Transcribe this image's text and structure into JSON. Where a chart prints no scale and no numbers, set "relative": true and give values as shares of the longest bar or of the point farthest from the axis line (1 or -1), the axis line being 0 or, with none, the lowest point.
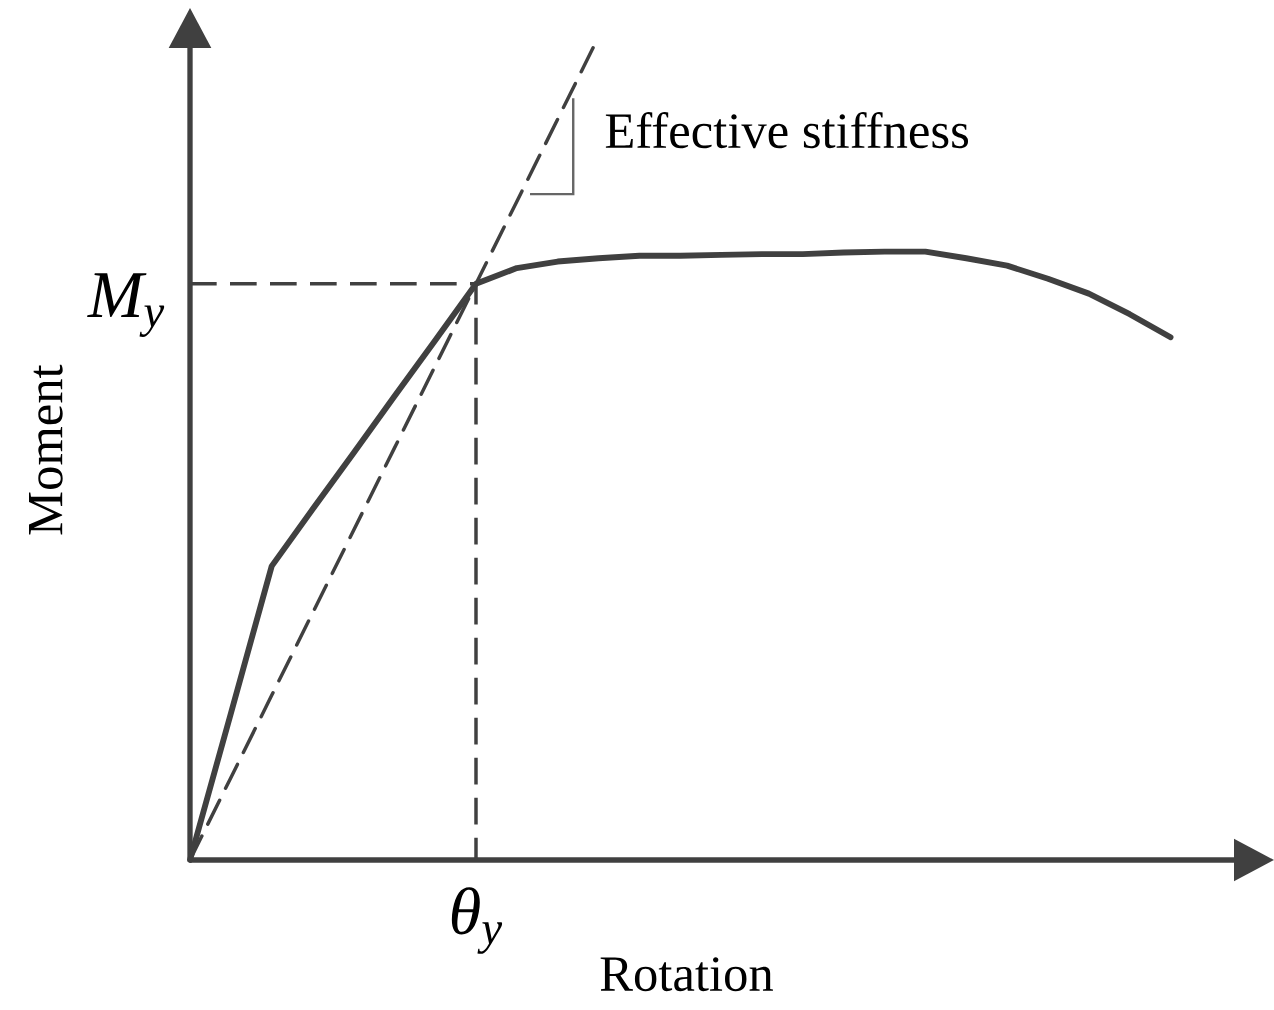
{
  "chart_data": {
    "type": "line",
    "relative": true,
    "xlabel": "Rotation",
    "ylabel": "Moment",
    "marker": "none",
    "categories": [
      null,
      null,
      null,
      null,
      null,
      null,
      null,
      null,
      null,
      null,
      null,
      null,
      null,
      null,
      null,
      null,
      null,
      null,
      null,
      null,
      null,
      null,
      null,
      null,
      null
    ],
    "series": [
      {
        "color": "#404040",
        "line_style": "solid",
        "values": [
          0,
          0.178,
          0.357,
          0.426,
          0.494,
          0.563,
          0.631,
          0.7,
          0.719,
          0.727,
          0.731,
          0.734,
          0.734,
          0.735,
          0.736,
          0.736,
          0.738,
          0.739,
          0.739,
          0.731,
          0.722,
          0.706,
          0.688,
          0.663,
          0.635
        ]
      },
      {
        "color": "#404040",
        "line_style": "dashed",
        "values": [
          0,
          0.1,
          0.2,
          0.3,
          0.4,
          0.5,
          0.6,
          0.7,
          0.8,
          0.9,
          1,
          null,
          null,
          null,
          null,
          null,
          null,
          null,
          null,
          null,
          null,
          null,
          null,
          null,
          null
        ]
      }
    ],
    "ref_lines": [
      {
        "axis": "y",
        "value": 0.7,
        "label": "*M$_{y}$*",
        "color": "#404040",
        "line_style": "dashed"
      }
    ],
    "annotations": [
      "Effective stiffness",
      "*θ$_{y}$*"
    ]
  }
}
